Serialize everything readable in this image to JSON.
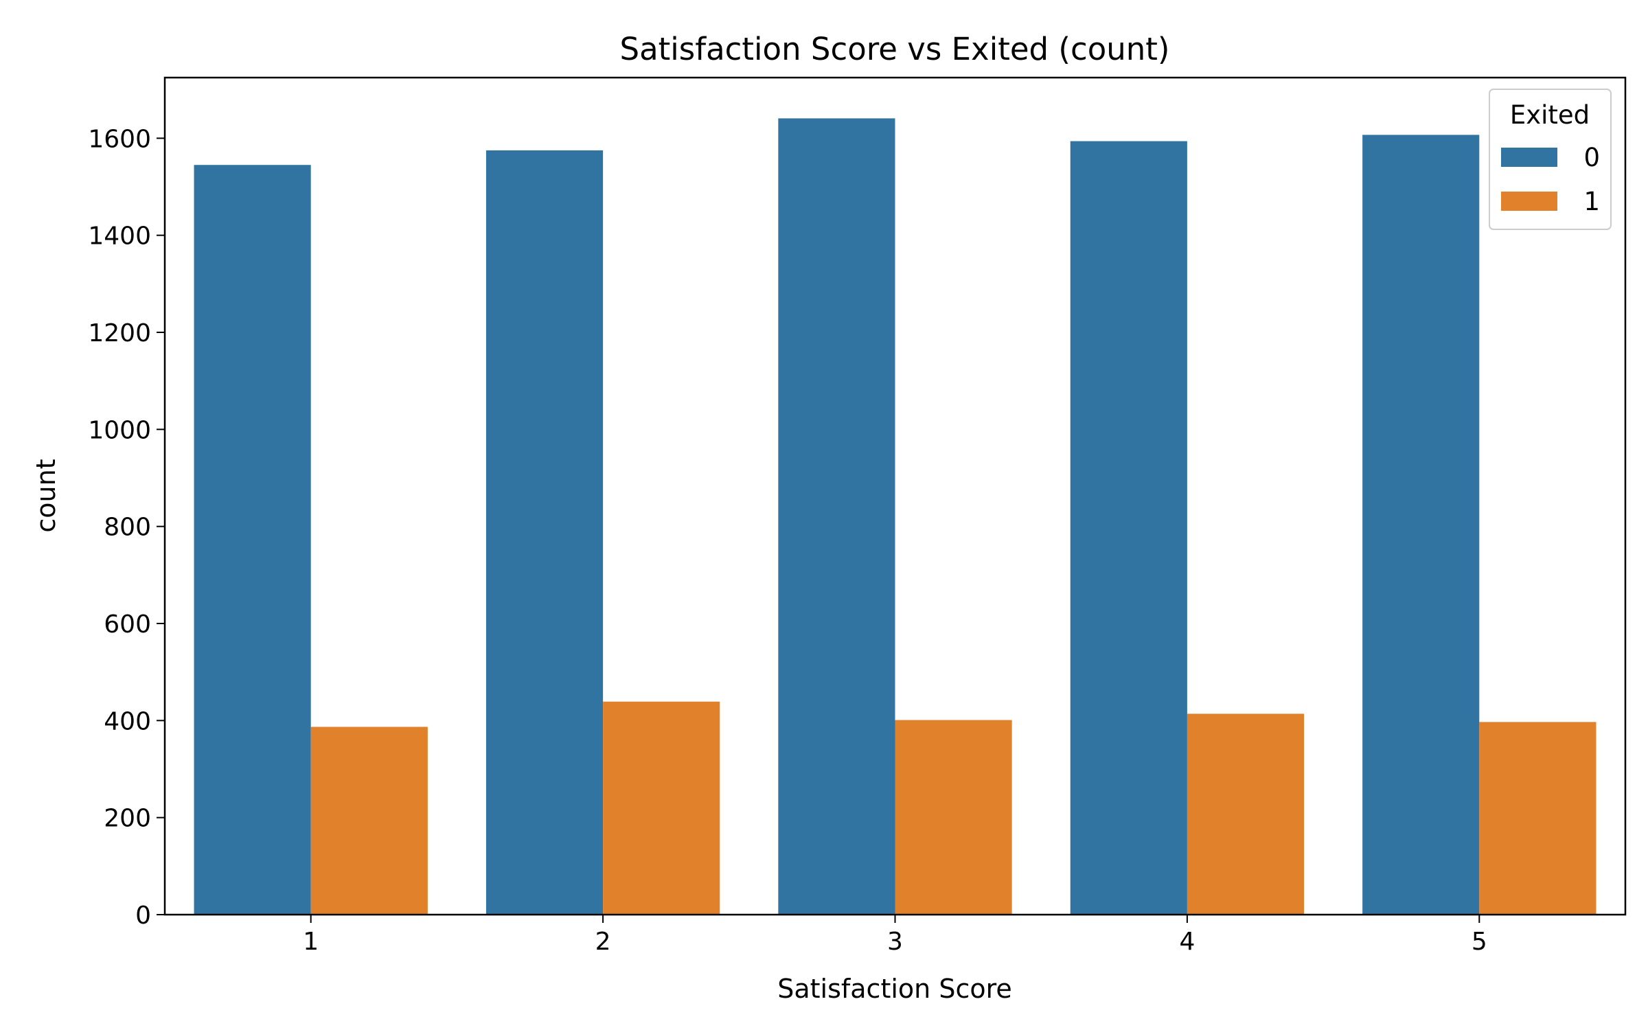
{
  "chart_data": {
    "type": "bar",
    "title": "Satisfaction Score vs Exited (count)",
    "xlabel": "Satisfaction Score",
    "ylabel": "count",
    "categories": [
      "1",
      "2",
      "3",
      "4",
      "5"
    ],
    "series": [
      {
        "name": "0",
        "values": [
          1545,
          1575,
          1641,
          1594,
          1607
        ],
        "color": "#3274a1"
      },
      {
        "name": "1",
        "values": [
          387,
          439,
          401,
          414,
          397
        ],
        "color": "#e1812c"
      }
    ],
    "ylim": [
      0,
      1725
    ],
    "yticks": [
      0,
      200,
      400,
      600,
      800,
      1000,
      1200,
      1400,
      1600
    ],
    "legend": {
      "title": "Exited",
      "placement": "top-right"
    },
    "grid": false
  }
}
